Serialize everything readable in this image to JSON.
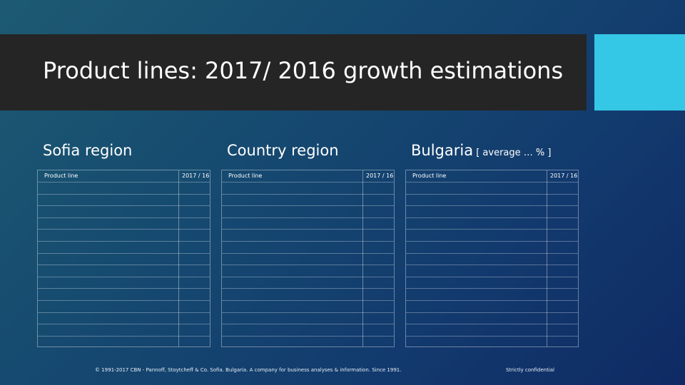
{
  "slide": {
    "title": "Product lines: 2017/ 2016 growth estimations"
  },
  "regions": [
    {
      "title": "Sofia region",
      "suffix": "",
      "col1": "Product line",
      "col2": "2017 / 16"
    },
    {
      "title": "Country region",
      "suffix": "",
      "col1": "Product line",
      "col2": "2017 / 16"
    },
    {
      "title": "Bulgaria",
      "suffix": " [ average … % ]",
      "col1": "Product line",
      "col2": "2017 / 16"
    }
  ],
  "footer": {
    "copyright": "© 1991-2017 CBN - Pannoff, Stoytcheff & Co. Sofia. Bulgaria. A company for business analyses & information. Since 1991.",
    "confidential": "Strictly confidential"
  }
}
